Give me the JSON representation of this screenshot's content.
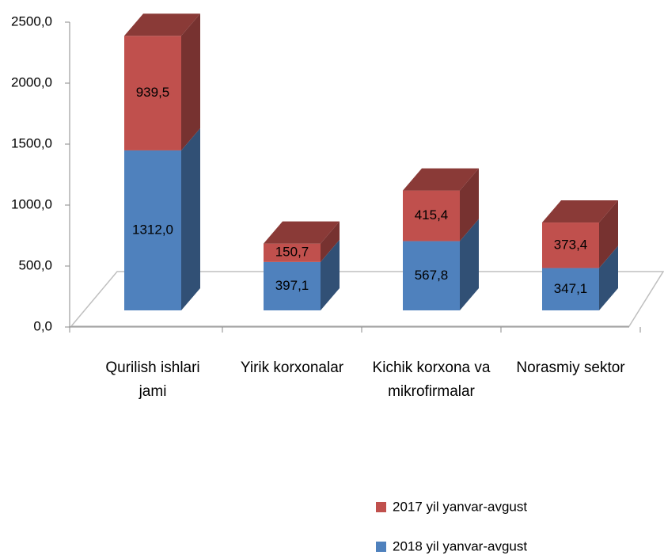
{
  "chart_data": {
    "type": "bar3d_stacked",
    "categories": [
      "Qurilish ishlari jami",
      "Yirik korxonalar",
      "Kichik korxona va mikrofirmalar",
      "Norasmiy sektor"
    ],
    "series": [
      {
        "name": "2018 yil yanvar-avgust",
        "color": "#4f81bd",
        "values": [
          1312.0,
          397.1,
          567.8,
          347.1
        ],
        "value_labels": [
          "1312,0",
          "397,1",
          "567,8",
          "347,1"
        ]
      },
      {
        "name": "2017 yil yanvar-avgust",
        "color": "#c0504d",
        "values": [
          939.5,
          150.7,
          415.4,
          373.4
        ],
        "value_labels": [
          "939,5",
          "150,7",
          "415,4",
          "373,4"
        ]
      }
    ],
    "ylim": [
      0,
      2500
    ],
    "yticks": [
      {
        "value": 0,
        "label": "0,0"
      },
      {
        "value": 500,
        "label": "500,0"
      },
      {
        "value": 1000,
        "label": "1000,0"
      },
      {
        "value": 1500,
        "label": "1500,0"
      },
      {
        "value": 2000,
        "label": "2000,0"
      },
      {
        "value": 2500,
        "label": "2500,0"
      }
    ],
    "legend": "bottom-right"
  }
}
